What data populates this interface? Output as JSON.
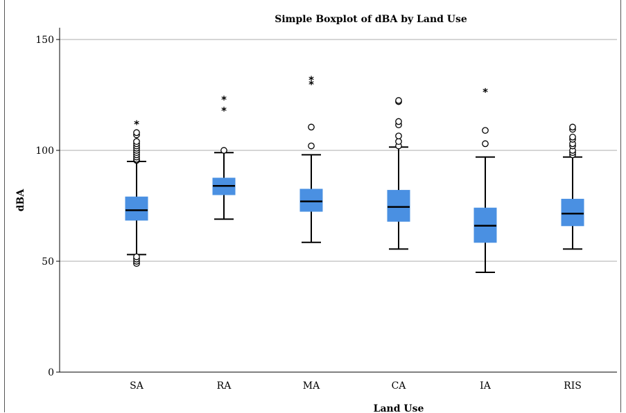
{
  "chart_data": {
    "type": "boxplot",
    "title": "Simple Boxplot of dBA by Land Use",
    "xlabel": "Land Use",
    "ylabel": "dBA",
    "ylim": [
      0,
      150
    ],
    "yticks": [
      0,
      50,
      100,
      150
    ],
    "grid": true,
    "categories": [
      "SA",
      "RA",
      "MA",
      "CA",
      "IA",
      "RIS"
    ],
    "boxes": [
      {
        "category": "SA",
        "whisker_low": 53,
        "q1": 68.5,
        "median": 73,
        "q3": 79,
        "whisker_high": 95,
        "outliers": [
          49,
          50,
          51,
          52,
          95.5,
          96,
          97,
          98,
          99,
          100,
          101,
          102,
          103,
          104,
          107,
          108
        ],
        "extremes": [
          113
        ]
      },
      {
        "category": "RA",
        "whisker_low": 69,
        "q1": 80,
        "median": 84,
        "q3": 87.5,
        "whisker_high": 99,
        "outliers": [
          100
        ],
        "extremes": [
          119,
          124
        ]
      },
      {
        "category": "MA",
        "whisker_low": 58.5,
        "q1": 72.5,
        "median": 77,
        "q3": 82.5,
        "whisker_high": 98,
        "outliers": [
          102,
          110.5
        ],
        "extremes": [
          131,
          133
        ]
      },
      {
        "category": "CA",
        "whisker_low": 55.5,
        "q1": 68,
        "median": 74.5,
        "q3": 82,
        "whisker_high": 101.5,
        "outliers": [
          102,
          104,
          106.5,
          111.5,
          113,
          122,
          122.5
        ],
        "extremes": []
      },
      {
        "category": "IA",
        "whisker_low": 45,
        "q1": 58.5,
        "median": 66,
        "q3": 74,
        "whisker_high": 97,
        "outliers": [
          103,
          109
        ],
        "extremes": [
          127.5
        ]
      },
      {
        "category": "RIS",
        "whisker_low": 55.5,
        "q1": 66,
        "median": 71.5,
        "q3": 78,
        "whisker_high": 97,
        "outliers": [
          98,
          99,
          100,
          102,
          103,
          105,
          106,
          109.5,
          110.5
        ],
        "extremes": []
      }
    ]
  }
}
